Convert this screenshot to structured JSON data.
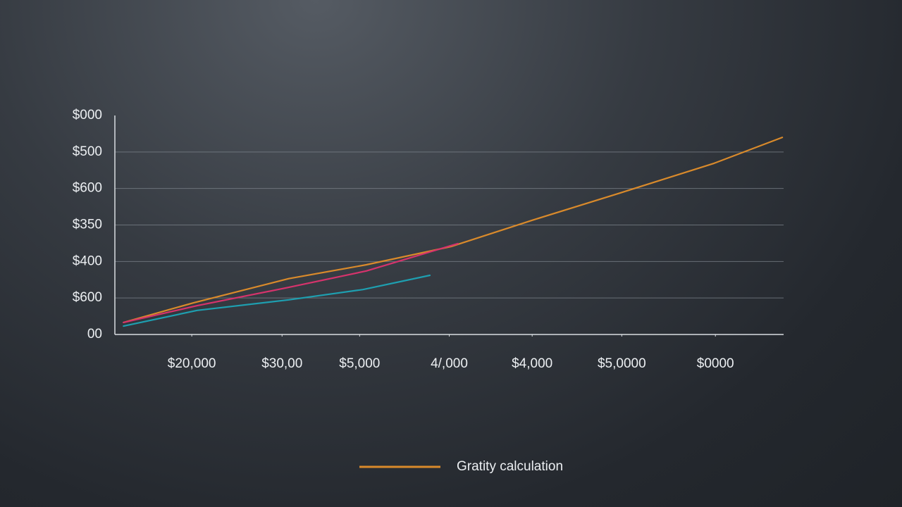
{
  "chart_data": {
    "type": "line",
    "xlim": [
      0,
      10
    ],
    "ylim": [
      0,
      6
    ],
    "xticks": [
      {
        "value": 1.15,
        "label": "$20,000"
      },
      {
        "value": 2.5,
        "label": "$30,00"
      },
      {
        "value": 3.66,
        "label": "$5,000"
      },
      {
        "value": 5.0,
        "label": "4/,000"
      },
      {
        "value": 6.24,
        "label": "$4,000"
      },
      {
        "value": 7.58,
        "label": "$5,0000"
      },
      {
        "value": 8.98,
        "label": "$0000"
      }
    ],
    "yticks": [
      {
        "value": 0,
        "label": "00"
      },
      {
        "value": 1,
        "label": "$600"
      },
      {
        "value": 2,
        "label": "$400"
      },
      {
        "value": 3,
        "label": "$350"
      },
      {
        "value": 4,
        "label": "$600"
      },
      {
        "value": 5,
        "label": "$500"
      },
      {
        "value": 6,
        "label": "$000"
      }
    ],
    "grid": true,
    "series": [
      {
        "name": "Gratity calculation",
        "color": "#d98a2b",
        "x": [
          0.13,
          1.18,
          2.6,
          3.76,
          5.03,
          6.24,
          7.56,
          8.96,
          9.98
        ],
        "values": [
          0.33,
          0.87,
          1.53,
          1.91,
          2.41,
          3.13,
          3.88,
          4.69,
          5.4
        ]
      },
      {
        "color": "#d6336c",
        "x": [
          0.13,
          1.23,
          2.6,
          3.76,
          5.13
        ],
        "values": [
          0.33,
          0.79,
          1.29,
          1.74,
          2.49
        ]
      },
      {
        "color": "#1e9fb0",
        "x": [
          0.13,
          1.23,
          2.6,
          3.71,
          4.71
        ],
        "values": [
          0.23,
          0.66,
          0.95,
          1.23,
          1.62
        ]
      }
    ]
  }
}
